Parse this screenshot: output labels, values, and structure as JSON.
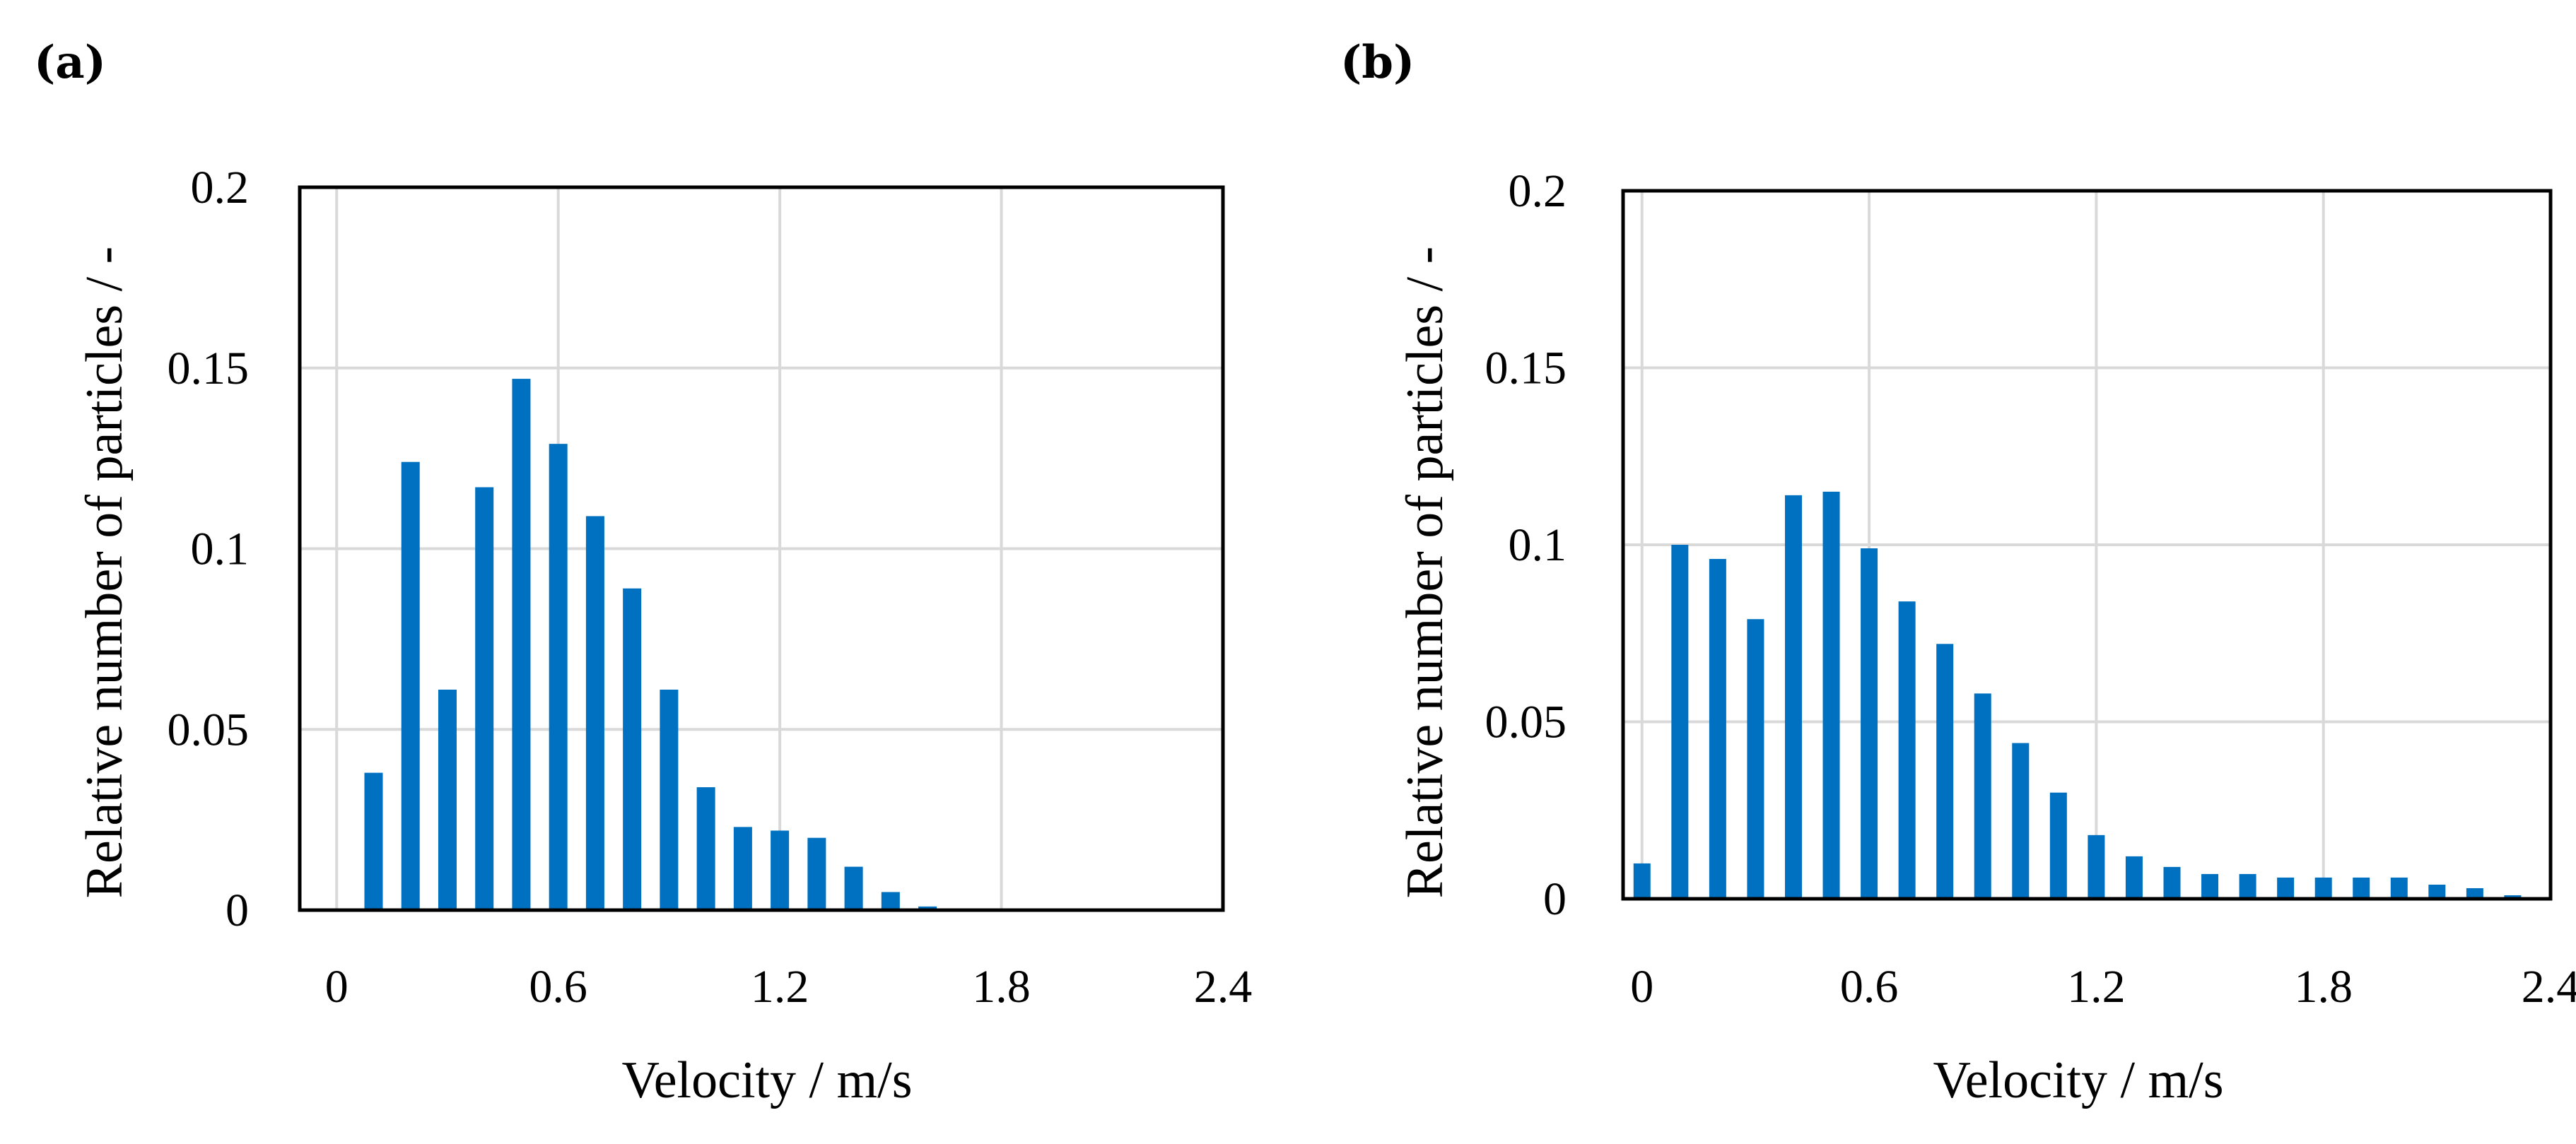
{
  "colors": {
    "bar": "#0070c0",
    "grid": "#d9d9d9",
    "frame": "#000000"
  },
  "chart_data": [
    {
      "type": "bar",
      "panel_label": "(a)",
      "xlabel": "Velocity / m/s",
      "ylabel": "Relative number of particles / -",
      "xlim": [
        -0.1,
        2.4
      ],
      "ylim": [
        0,
        0.2
      ],
      "xticks": [
        0,
        0.6,
        1.2,
        1.8,
        2.4
      ],
      "xtick_labels": [
        "0",
        "0.6",
        "1.2",
        "1.8",
        "2.4"
      ],
      "yticks": [
        0,
        0.05,
        0.1,
        0.15,
        0.2
      ],
      "ytick_labels": [
        "0",
        "0.05",
        "0.1",
        "0.15",
        "0.2"
      ],
      "grid": true,
      "x": [
        0.1,
        0.2,
        0.3,
        0.4,
        0.5,
        0.6,
        0.7,
        0.8,
        0.9,
        1.0,
        1.1,
        1.2,
        1.3,
        1.4,
        1.5,
        1.6
      ],
      "values": [
        0.038,
        0.124,
        0.061,
        0.117,
        0.147,
        0.129,
        0.109,
        0.089,
        0.061,
        0.034,
        0.023,
        0.022,
        0.02,
        0.012,
        0.005,
        0.001
      ]
    },
    {
      "type": "bar",
      "panel_label": "(b)",
      "xlabel": "Velocity / m/s",
      "ylabel": "Relative number of particles  / -",
      "xlim": [
        -0.05,
        2.4
      ],
      "ylim": [
        0,
        0.2
      ],
      "xticks": [
        0,
        0.6,
        1.2,
        1.8,
        2.4
      ],
      "xtick_labels": [
        "0",
        "0.6",
        "1.2",
        "1.8",
        "2.4"
      ],
      "yticks": [
        0,
        0.05,
        0.1,
        0.15,
        0.2
      ],
      "ytick_labels": [
        "0",
        "0.05",
        "0.1",
        "0.15",
        "0.2"
      ],
      "grid": true,
      "x": [
        0,
        0.1,
        0.2,
        0.3,
        0.4,
        0.5,
        0.6,
        0.7,
        0.8,
        0.9,
        1.0,
        1.1,
        1.2,
        1.3,
        1.4,
        1.5,
        1.6,
        1.7,
        1.8,
        1.9,
        2.0,
        2.1,
        2.2,
        2.3
      ],
      "values": [
        0.01,
        0.1,
        0.096,
        0.079,
        0.114,
        0.115,
        0.099,
        0.084,
        0.072,
        0.058,
        0.044,
        0.03,
        0.018,
        0.012,
        0.009,
        0.007,
        0.007,
        0.006,
        0.006,
        0.006,
        0.006,
        0.004,
        0.003,
        0.001
      ]
    }
  ]
}
